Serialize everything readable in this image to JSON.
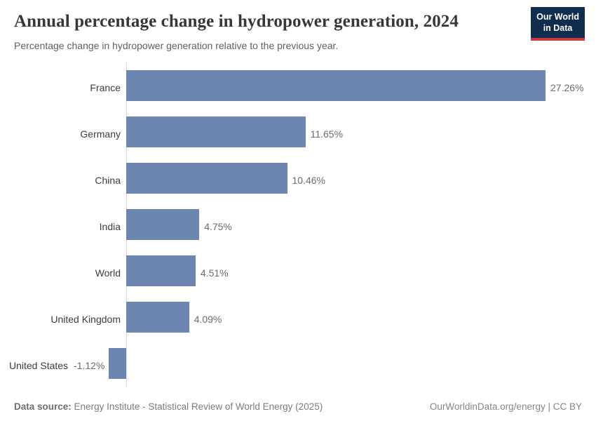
{
  "header": {
    "title": "Annual percentage change in hydropower generation, 2024",
    "subtitle": "Percentage change in hydropower generation relative to the previous year."
  },
  "logo": {
    "line1": "Our World",
    "line2": "in Data"
  },
  "chart_data": {
    "type": "bar",
    "orientation": "horizontal",
    "title": "Annual percentage change in hydropower generation, 2024",
    "subtitle": "Percentage change in hydropower generation relative to the previous year.",
    "categories": [
      "France",
      "Germany",
      "China",
      "India",
      "World",
      "United Kingdom",
      "United States"
    ],
    "values": [
      27.26,
      11.65,
      10.46,
      4.75,
      4.51,
      4.09,
      -1.12
    ],
    "value_labels": [
      "27.26%",
      "11.65%",
      "10.46%",
      "4.75%",
      "4.51%",
      "4.09%",
      "-1.12%"
    ],
    "xlim": [
      -1.12,
      27.26
    ],
    "grid": false,
    "legend": false,
    "xlabel": "",
    "ylabel": ""
  },
  "colors": {
    "bar": "#6c85b1",
    "axis": "#dedede",
    "logo_bg": "#102d50",
    "logo_red": "#cc3b44"
  },
  "footer": {
    "data_source_label": "Data source:",
    "data_source": "Energy Institute - Statistical Review of World Energy (2025)",
    "credit": "OurWorldinData.org/energy | CC BY"
  }
}
